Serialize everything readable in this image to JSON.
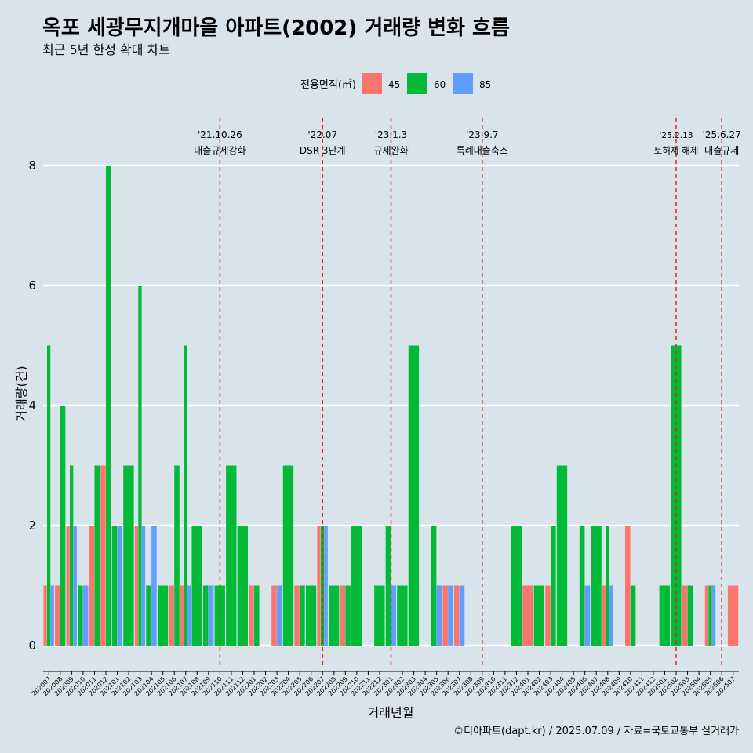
{
  "chart_data": {
    "type": "bar",
    "title": "옥포 세광무지개마을 아파트(2002) 거래량 변화 흐름",
    "subtitle": "최근 5년 한정 확대 차트",
    "xlabel": "거래년월",
    "ylabel": "거래량(건)",
    "ylim": [
      0,
      8
    ],
    "yticks": [
      0,
      2,
      4,
      6,
      8
    ],
    "grid": "horizontal",
    "legend": {
      "title": "전용면적(㎡)",
      "placement": "top-center",
      "items": [
        {
          "label": "45",
          "color": "#F8766D"
        },
        {
          "label": "60",
          "color": "#00BA38"
        },
        {
          "label": "85",
          "color": "#619CFF"
        }
      ]
    },
    "categories": [
      "202007",
      "202008",
      "202009",
      "202010",
      "202011",
      "202012",
      "202101",
      "202102",
      "202103",
      "202104",
      "202105",
      "202106",
      "202107",
      "202108",
      "202109",
      "202110",
      "202111",
      "202112",
      "202201",
      "202202",
      "202203",
      "202204",
      "202205",
      "202206",
      "202207",
      "202208",
      "202209",
      "202210",
      "202211",
      "202212",
      "202301",
      "202302",
      "202303",
      "202304",
      "202305",
      "202306",
      "202307",
      "202308",
      "202309",
      "202310",
      "202311",
      "202312",
      "202401",
      "202402",
      "202403",
      "202404",
      "202405",
      "202406",
      "202407",
      "202408",
      "202409",
      "202410",
      "202411",
      "202412",
      "202501",
      "202502",
      "202503",
      "202504",
      "202505",
      "202506",
      "202507"
    ],
    "series": [
      {
        "name": "45",
        "color": "#F8766D",
        "values": [
          1,
          1,
          2,
          0,
          2,
          3,
          0,
          0,
          2,
          0,
          0,
          1,
          1,
          0,
          0,
          0,
          0,
          0,
          1,
          0,
          1,
          0,
          1,
          0,
          2,
          0,
          1,
          0,
          0,
          0,
          0,
          0,
          0,
          0,
          0,
          1,
          1,
          0,
          0,
          0,
          0,
          0,
          1,
          0,
          1,
          0,
          0,
          0,
          0,
          1,
          0,
          2,
          0,
          0,
          0,
          0,
          1,
          0,
          1,
          0,
          1
        ]
      },
      {
        "name": "60",
        "color": "#00BA38",
        "values": [
          5,
          4,
          3,
          1,
          3,
          8,
          2,
          3,
          6,
          1,
          1,
          3,
          5,
          2,
          1,
          1,
          3,
          2,
          1,
          0,
          0,
          3,
          1,
          1,
          2,
          1,
          1,
          2,
          0,
          1,
          2,
          1,
          5,
          0,
          2,
          0,
          0,
          0,
          0,
          0,
          0,
          2,
          0,
          1,
          2,
          3,
          0,
          2,
          2,
          2,
          0,
          1,
          0,
          0,
          1,
          5,
          1,
          0,
          1,
          0,
          0
        ]
      },
      {
        "name": "85",
        "color": "#619CFF",
        "values": [
          1,
          0,
          2,
          1,
          0,
          0,
          2,
          0,
          2,
          2,
          0,
          0,
          1,
          0,
          1,
          0,
          0,
          0,
          0,
          0,
          1,
          0,
          0,
          0,
          2,
          0,
          0,
          0,
          0,
          0,
          1,
          0,
          0,
          0,
          1,
          1,
          1,
          0,
          0,
          0,
          0,
          0,
          0,
          0,
          0,
          0,
          0,
          1,
          0,
          1,
          0,
          0,
          0,
          0,
          0,
          0,
          0,
          0,
          1,
          0,
          0
        ]
      }
    ],
    "annotations": [
      {
        "at": "202110",
        "date": "'21.10.26",
        "text": "대출규제강화"
      },
      {
        "at": "202207",
        "date": "'22.07",
        "text": "DSR 3단계"
      },
      {
        "at": "202301",
        "date": "'23.1.3",
        "text": "규제완화"
      },
      {
        "at": "202309",
        "date": "'23.9.7",
        "text": "특례대출축소"
      },
      {
        "at": "202502",
        "date": "'25.2.13",
        "text": "토허제 해제"
      },
      {
        "at": "202506",
        "date": "'25.6.27",
        "text": "대출규제"
      }
    ],
    "caption": "©디아파트(dapt.kr) / 2025.07.09 / 자료=국토교통부 실거래가"
  }
}
